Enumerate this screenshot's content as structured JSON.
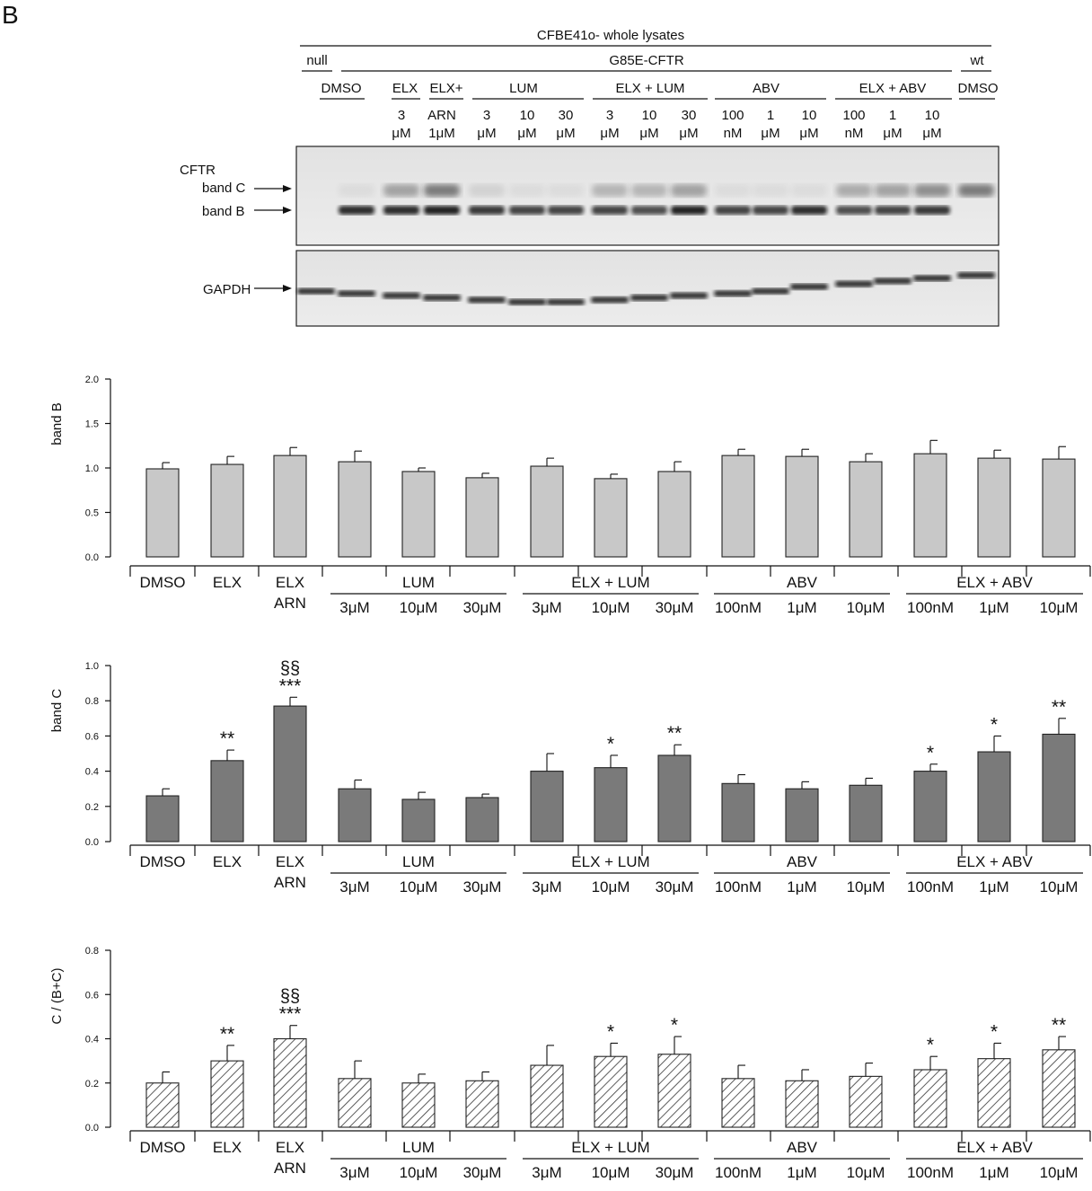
{
  "panel_letter": "B",
  "blot": {
    "header_title": "CFBE41o- whole lysates",
    "group_labels": [
      "null",
      "G85E-CFTR",
      "wt"
    ],
    "treatment_labels": [
      "DMSO",
      "ELX",
      "ELX+",
      "LUM",
      "ELX + LUM",
      "ABV",
      "ELX + ABV",
      "DMSO"
    ],
    "lane_conc_top": [
      "",
      "",
      "3",
      "ARN",
      "3",
      "10",
      "30",
      "3",
      "10",
      "30",
      "100",
      "1",
      "10",
      "100",
      "1",
      "10",
      ""
    ],
    "lane_conc_bottom": [
      "",
      "",
      "μM",
      "1μM",
      "μM",
      "μM",
      "μM",
      "μM",
      "μM",
      "μM",
      "nM",
      "μM",
      "μM",
      "nM",
      "μM",
      "μM",
      ""
    ],
    "cftr_label": "CFTR",
    "band_c_label": "band C",
    "band_b_label": "band B",
    "gapdh_label": "GAPDH",
    "band_b_intensity": [
      0,
      0.85,
      0.85,
      0.9,
      0.8,
      0.75,
      0.75,
      0.75,
      0.7,
      0.9,
      0.75,
      0.75,
      0.85,
      0.7,
      0.75,
      0.8,
      0
    ],
    "band_c_intensity": [
      0,
      0.05,
      0.35,
      0.55,
      0.1,
      0.05,
      0.05,
      0.25,
      0.25,
      0.35,
      0.05,
      0.05,
      0.05,
      0.3,
      0.35,
      0.45,
      0.55
    ]
  },
  "x_axis": {
    "single_labels": [
      {
        "line1": "DMSO",
        "line2": ""
      },
      {
        "line1": "ELX",
        "line2": ""
      },
      {
        "line1": "ELX",
        "line2": "ARN"
      }
    ],
    "groups": [
      {
        "name": "LUM",
        "conc": [
          "3μM",
          "10μM",
          "30μM"
        ]
      },
      {
        "name": "ELX + LUM",
        "conc": [
          "3μM",
          "10μM",
          "30μM"
        ]
      },
      {
        "name": "ABV",
        "conc": [
          "100nM",
          "1μM",
          "10μM"
        ]
      },
      {
        "name": "ELX + ABV",
        "conc": [
          "100nM",
          "1μM",
          "10μM"
        ]
      }
    ]
  },
  "colors": {
    "band_b": "#c8c8c8",
    "band_c": "#7a7a7a",
    "ratio_fill": "#ffffff",
    "hatch": "#333333",
    "blot_bg": "#e6e6e6"
  },
  "chart_data": [
    {
      "type": "bar",
      "ylabel": "band B",
      "ylim": [
        0,
        2.0
      ],
      "yticks": [
        "0.0",
        "0.5",
        "1.0",
        "1.5",
        "2.0"
      ],
      "fill": "solid-light-gray",
      "categories": [
        "DMSO",
        "ELX",
        "ELX ARN",
        "LUM 3μM",
        "LUM 10μM",
        "LUM 30μM",
        "ELX + LUM 3μM",
        "ELX + LUM 10μM",
        "ELX + LUM 30μM",
        "ABV 100nM",
        "ABV 1μM",
        "ABV 10μM",
        "ELX + ABV 100nM",
        "ELX + ABV 1μM",
        "ELX + ABV 10μM"
      ],
      "values": [
        0.99,
        1.04,
        1.14,
        1.07,
        0.96,
        0.89,
        1.02,
        0.88,
        0.96,
        1.14,
        1.13,
        1.07,
        1.16,
        1.11,
        1.1
      ],
      "errors": [
        0.07,
        0.09,
        0.09,
        0.12,
        0.04,
        0.05,
        0.09,
        0.05,
        0.11,
        0.07,
        0.08,
        0.09,
        0.15,
        0.09,
        0.14
      ],
      "annotations": [
        "",
        "",
        "",
        "",
        "",
        "",
        "",
        "",
        "",
        "",
        "",
        "",
        "",
        "",
        ""
      ],
      "annotations2": [
        "",
        "",
        "",
        "",
        "",
        "",
        "",
        "",
        "",
        "",
        "",
        "",
        "",
        "",
        ""
      ]
    },
    {
      "type": "bar",
      "ylabel": "band C",
      "ylim": [
        0,
        1.0
      ],
      "yticks": [
        "0.0",
        "0.2",
        "0.4",
        "0.6",
        "0.8",
        "1.0"
      ],
      "fill": "solid-dark-gray",
      "categories": [
        "DMSO",
        "ELX",
        "ELX ARN",
        "LUM 3μM",
        "LUM 10μM",
        "LUM 30μM",
        "ELX + LUM 3μM",
        "ELX + LUM 10μM",
        "ELX + LUM 30μM",
        "ABV 100nM",
        "ABV 1μM",
        "ABV 10μM",
        "ELX + ABV 100nM",
        "ELX + ABV 1μM",
        "ELX + ABV 10μM"
      ],
      "values": [
        0.26,
        0.46,
        0.77,
        0.3,
        0.24,
        0.25,
        0.4,
        0.42,
        0.49,
        0.33,
        0.3,
        0.32,
        0.4,
        0.51,
        0.61
      ],
      "errors": [
        0.04,
        0.06,
        0.05,
        0.05,
        0.04,
        0.02,
        0.1,
        0.07,
        0.06,
        0.05,
        0.04,
        0.04,
        0.04,
        0.09,
        0.09
      ],
      "annotations": [
        "",
        "**",
        "***",
        "",
        "",
        "",
        "",
        "*",
        "**",
        "",
        "",
        "",
        "*",
        "*",
        "**"
      ],
      "annotations2": [
        "",
        "",
        "§§",
        "",
        "",
        "",
        "",
        "",
        "",
        "",
        "",
        "",
        "",
        "",
        ""
      ]
    },
    {
      "type": "bar",
      "ylabel": "C / (B+C)",
      "ylim": [
        0,
        0.8
      ],
      "yticks": [
        "0.0",
        "0.2",
        "0.4",
        "0.6",
        "0.8"
      ],
      "fill": "hatched",
      "categories": [
        "DMSO",
        "ELX",
        "ELX ARN",
        "LUM 3μM",
        "LUM 10μM",
        "LUM 30μM",
        "ELX + LUM 3μM",
        "ELX + LUM 10μM",
        "ELX + LUM 30μM",
        "ABV 100nM",
        "ABV 1μM",
        "ABV 10μM",
        "ELX + ABV 100nM",
        "ELX + ABV 1μM",
        "ELX + ABV 10μM"
      ],
      "values": [
        0.2,
        0.3,
        0.4,
        0.22,
        0.2,
        0.21,
        0.28,
        0.32,
        0.33,
        0.22,
        0.21,
        0.23,
        0.26,
        0.31,
        0.35
      ],
      "errors": [
        0.05,
        0.07,
        0.06,
        0.08,
        0.04,
        0.04,
        0.09,
        0.06,
        0.08,
        0.06,
        0.05,
        0.06,
        0.06,
        0.07,
        0.06
      ],
      "annotations": [
        "",
        "**",
        "***",
        "",
        "",
        "",
        "",
        "*",
        "*",
        "",
        "",
        "",
        "*",
        "*",
        "**"
      ],
      "annotations2": [
        "",
        "",
        "§§",
        "",
        "",
        "",
        "",
        "",
        "",
        "",
        "",
        "",
        "",
        "",
        ""
      ]
    }
  ]
}
